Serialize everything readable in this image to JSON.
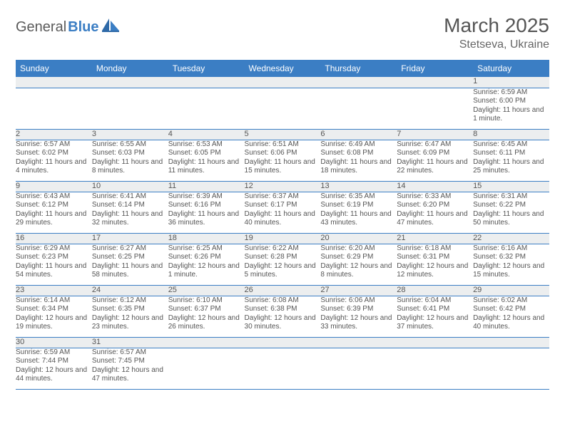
{
  "logo": {
    "textA": "General",
    "textB": "Blue"
  },
  "title": "March 2025",
  "location": "Stetseva, Ukraine",
  "colors": {
    "header_bg": "#3b7ec4",
    "header_text": "#ffffff",
    "daynum_bg": "#eceeef",
    "text": "#555555",
    "border": "#3b7ec4"
  },
  "typography": {
    "title_fontsize": 28,
    "location_fontsize": 16,
    "header_fontsize": 12,
    "daynum_fontsize": 11,
    "cell_fontsize": 10
  },
  "weekdays": [
    "Sunday",
    "Monday",
    "Tuesday",
    "Wednesday",
    "Thursday",
    "Friday",
    "Saturday"
  ],
  "weeks": [
    {
      "nums": [
        "",
        "",
        "",
        "",
        "",
        "",
        "1"
      ],
      "cells": [
        "",
        "",
        "",
        "",
        "",
        "",
        "Sunrise: 6:59 AM\nSunset: 6:00 PM\nDaylight: 11 hours and 1 minute."
      ]
    },
    {
      "nums": [
        "2",
        "3",
        "4",
        "5",
        "6",
        "7",
        "8"
      ],
      "cells": [
        "Sunrise: 6:57 AM\nSunset: 6:02 PM\nDaylight: 11 hours and 4 minutes.",
        "Sunrise: 6:55 AM\nSunset: 6:03 PM\nDaylight: 11 hours and 8 minutes.",
        "Sunrise: 6:53 AM\nSunset: 6:05 PM\nDaylight: 11 hours and 11 minutes.",
        "Sunrise: 6:51 AM\nSunset: 6:06 PM\nDaylight: 11 hours and 15 minutes.",
        "Sunrise: 6:49 AM\nSunset: 6:08 PM\nDaylight: 11 hours and 18 minutes.",
        "Sunrise: 6:47 AM\nSunset: 6:09 PM\nDaylight: 11 hours and 22 minutes.",
        "Sunrise: 6:45 AM\nSunset: 6:11 PM\nDaylight: 11 hours and 25 minutes."
      ]
    },
    {
      "nums": [
        "9",
        "10",
        "11",
        "12",
        "13",
        "14",
        "15"
      ],
      "cells": [
        "Sunrise: 6:43 AM\nSunset: 6:12 PM\nDaylight: 11 hours and 29 minutes.",
        "Sunrise: 6:41 AM\nSunset: 6:14 PM\nDaylight: 11 hours and 32 minutes.",
        "Sunrise: 6:39 AM\nSunset: 6:16 PM\nDaylight: 11 hours and 36 minutes.",
        "Sunrise: 6:37 AM\nSunset: 6:17 PM\nDaylight: 11 hours and 40 minutes.",
        "Sunrise: 6:35 AM\nSunset: 6:19 PM\nDaylight: 11 hours and 43 minutes.",
        "Sunrise: 6:33 AM\nSunset: 6:20 PM\nDaylight: 11 hours and 47 minutes.",
        "Sunrise: 6:31 AM\nSunset: 6:22 PM\nDaylight: 11 hours and 50 minutes."
      ]
    },
    {
      "nums": [
        "16",
        "17",
        "18",
        "19",
        "20",
        "21",
        "22"
      ],
      "cells": [
        "Sunrise: 6:29 AM\nSunset: 6:23 PM\nDaylight: 11 hours and 54 minutes.",
        "Sunrise: 6:27 AM\nSunset: 6:25 PM\nDaylight: 11 hours and 58 minutes.",
        "Sunrise: 6:25 AM\nSunset: 6:26 PM\nDaylight: 12 hours and 1 minute.",
        "Sunrise: 6:22 AM\nSunset: 6:28 PM\nDaylight: 12 hours and 5 minutes.",
        "Sunrise: 6:20 AM\nSunset: 6:29 PM\nDaylight: 12 hours and 8 minutes.",
        "Sunrise: 6:18 AM\nSunset: 6:31 PM\nDaylight: 12 hours and 12 minutes.",
        "Sunrise: 6:16 AM\nSunset: 6:32 PM\nDaylight: 12 hours and 15 minutes."
      ]
    },
    {
      "nums": [
        "23",
        "24",
        "25",
        "26",
        "27",
        "28",
        "29"
      ],
      "cells": [
        "Sunrise: 6:14 AM\nSunset: 6:34 PM\nDaylight: 12 hours and 19 minutes.",
        "Sunrise: 6:12 AM\nSunset: 6:35 PM\nDaylight: 12 hours and 23 minutes.",
        "Sunrise: 6:10 AM\nSunset: 6:37 PM\nDaylight: 12 hours and 26 minutes.",
        "Sunrise: 6:08 AM\nSunset: 6:38 PM\nDaylight: 12 hours and 30 minutes.",
        "Sunrise: 6:06 AM\nSunset: 6:39 PM\nDaylight: 12 hours and 33 minutes.",
        "Sunrise: 6:04 AM\nSunset: 6:41 PM\nDaylight: 12 hours and 37 minutes.",
        "Sunrise: 6:02 AM\nSunset: 6:42 PM\nDaylight: 12 hours and 40 minutes."
      ]
    },
    {
      "nums": [
        "30",
        "31",
        "",
        "",
        "",
        "",
        ""
      ],
      "cells": [
        "Sunrise: 6:59 AM\nSunset: 7:44 PM\nDaylight: 12 hours and 44 minutes.",
        "Sunrise: 6:57 AM\nSunset: 7:45 PM\nDaylight: 12 hours and 47 minutes.",
        "",
        "",
        "",
        "",
        ""
      ]
    }
  ]
}
